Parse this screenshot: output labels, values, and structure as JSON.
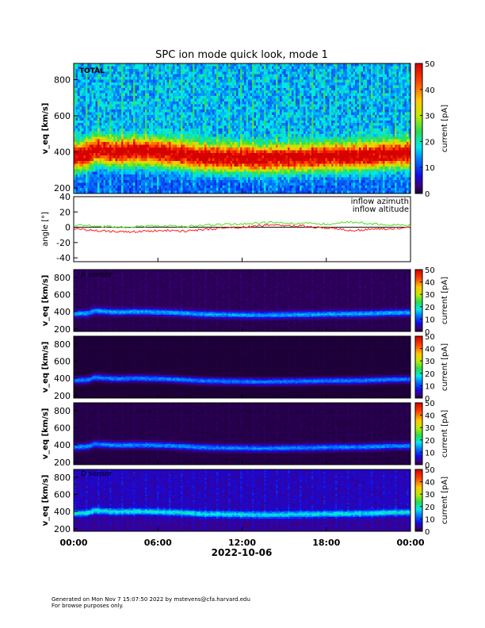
{
  "title": "SPC ion mode quick look, mode 1",
  "colors": {
    "azimuth": "#ff2020",
    "altitude": "#55dd22",
    "zero_line": "#000000",
    "background_spectrogram": "#0a0a0a"
  },
  "footer": {
    "line1": "Generated on Mon Nov  7 15:07:50 2022 by mstevens@cfa.harvard.edu",
    "line2": "For browse purposes only."
  },
  "chart_data": [
    {
      "type": "heatmap",
      "panel_label": "TOTAL",
      "ylabel": "v_eq [km/s]",
      "ylim": [
        170,
        890
      ],
      "yticks": [
        "200",
        "400",
        "600",
        "800"
      ],
      "colorbar": {
        "label": "current [pA]",
        "range": [
          0,
          50
        ],
        "ticks": [
          "0",
          "10",
          "20",
          "30",
          "40",
          "50"
        ]
      },
      "background_level": 15,
      "core_peak": 40,
      "core_width": 70
    },
    {
      "type": "line",
      "ylabel": "angle [°]",
      "ylim": [
        -45,
        40
      ],
      "yticks": [
        "-40",
        "-20",
        "0",
        "20",
        "40"
      ],
      "x": [
        0,
        2,
        4,
        6,
        8,
        10,
        12,
        14,
        16,
        18,
        20,
        22,
        24
      ],
      "series": [
        {
          "name": "inflow azimuth",
          "values": [
            -2,
            -5,
            -6,
            -4,
            -5,
            -2,
            0,
            3,
            2,
            -1,
            -4,
            -2,
            -1
          ]
        },
        {
          "name": "inflow altitude",
          "values": [
            3,
            1,
            0,
            2,
            1,
            3,
            4,
            6,
            5,
            4,
            7,
            3,
            2
          ]
        }
      ]
    },
    {
      "type": "heatmap",
      "panel_label": "A sensor",
      "ylabel": "v_eq [km/s]",
      "ylim": [
        170,
        890
      ],
      "yticks": [
        "200",
        "400",
        "600",
        "800"
      ],
      "colorbar": {
        "label": "current [pA]",
        "range": [
          0,
          50
        ],
        "ticks": [
          "0",
          "10",
          "20",
          "30",
          "40",
          "50"
        ]
      },
      "background_level": 1.5,
      "core_peak": 14,
      "core_width": 35
    },
    {
      "type": "heatmap",
      "panel_label": "",
      "ylabel": "v_eq [km/s]",
      "ylim": [
        170,
        890
      ],
      "yticks": [
        "200",
        "400",
        "600",
        "800"
      ],
      "colorbar": {
        "label": "current [pA]",
        "range": [
          0,
          50
        ],
        "ticks": [
          "0",
          "10",
          "20",
          "30",
          "40",
          "50"
        ]
      },
      "background_level": 0.4,
      "core_peak": 13,
      "core_width": 35
    },
    {
      "type": "heatmap",
      "panel_label": "",
      "ylabel": "v_eq [km/s]",
      "ylim": [
        170,
        890
      ],
      "yticks": [
        "200",
        "400",
        "600",
        "800"
      ],
      "colorbar": {
        "label": "current [pA]",
        "range": [
          0,
          50
        ],
        "ticks": [
          "0",
          "10",
          "20",
          "30",
          "40",
          "50"
        ]
      },
      "background_level": 1.0,
      "core_peak": 13,
      "core_width": 35
    },
    {
      "type": "heatmap",
      "panel_label": "D sensor",
      "ylabel": "v_eq [km/s]",
      "ylim": [
        170,
        890
      ],
      "yticks": [
        "200",
        "400",
        "600",
        "800"
      ],
      "colorbar": {
        "label": "current [pA]",
        "range": [
          0,
          50
        ],
        "ticks": [
          "0",
          "10",
          "20",
          "30",
          "40",
          "50"
        ]
      },
      "background_level": 5,
      "core_peak": 14,
      "core_width": 35
    }
  ],
  "time_axis": {
    "xlim": [
      0,
      24
    ],
    "tick_hours": [
      0,
      6,
      12,
      18,
      24
    ],
    "tick_labels": [
      "00:00",
      "06:00",
      "12:00",
      "18:00",
      "00:00"
    ],
    "date_label": "2022-10-06"
  },
  "solar_wind_core_speed": {
    "hours": [
      0,
      1,
      1.5,
      3,
      4.5,
      6,
      7.5,
      9,
      10.5,
      12,
      13.5,
      15,
      16.5,
      18,
      19.5,
      21,
      22.5,
      24
    ],
    "speed": [
      375,
      380,
      410,
      395,
      400,
      395,
      385,
      370,
      365,
      362,
      358,
      362,
      365,
      370,
      372,
      375,
      385,
      388
    ]
  }
}
